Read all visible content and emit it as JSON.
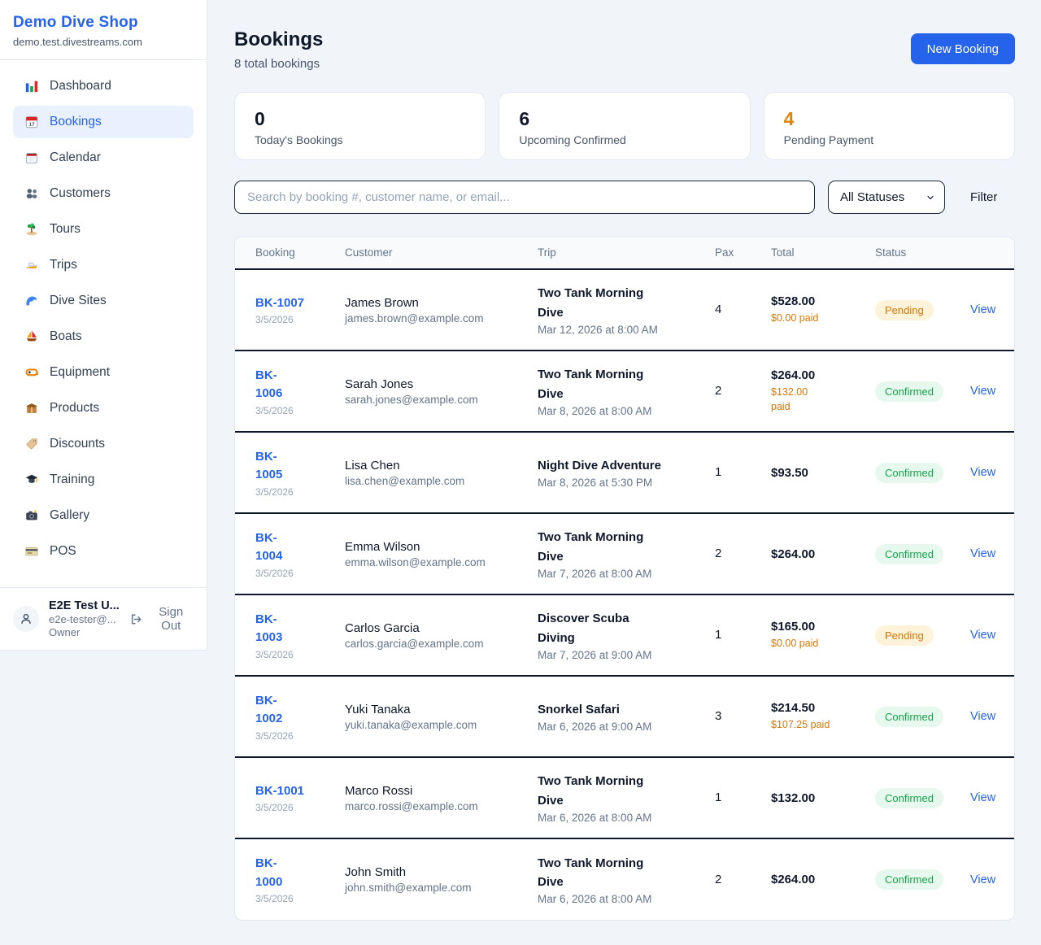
{
  "colors": {
    "accent_blue": "#2563eb",
    "accent_orange": "#d97706",
    "confirmed_green": "#16a34a",
    "pending_badge_bg": "#fdf3da",
    "confirmed_badge_bg": "#e7f8ee"
  },
  "sidebar": {
    "shop_name": "Demo Dive Shop",
    "shop_domain": "demo.test.divestreams.com",
    "items": [
      {
        "label": "Dashboard",
        "icon": "bar-chart-icon",
        "active": false
      },
      {
        "label": "Bookings",
        "icon": "calendar-icon",
        "active": true
      },
      {
        "label": "Calendar",
        "icon": "spiral-calendar-icon",
        "active": false
      },
      {
        "label": "Customers",
        "icon": "users-icon",
        "active": false
      },
      {
        "label": "Tours",
        "icon": "island-icon",
        "active": false
      },
      {
        "label": "Trips",
        "icon": "speedboat-icon",
        "active": false
      },
      {
        "label": "Dive Sites",
        "icon": "wave-icon",
        "active": false
      },
      {
        "label": "Boats",
        "icon": "sailboat-icon",
        "active": false
      },
      {
        "label": "Equipment",
        "icon": "diving-mask-icon",
        "active": false
      },
      {
        "label": "Products",
        "icon": "package-icon",
        "active": false
      },
      {
        "label": "Discounts",
        "icon": "label-icon",
        "active": false
      },
      {
        "label": "Training",
        "icon": "graduation-cap-icon",
        "active": false
      },
      {
        "label": "Gallery",
        "icon": "camera-icon",
        "active": false
      },
      {
        "label": "POS",
        "icon": "credit-card-icon",
        "active": false
      }
    ],
    "user": {
      "name": "E2E Test U...",
      "email": "e2e-tester@...",
      "role": "Owner",
      "sign_out_label": "Sign Out"
    }
  },
  "header": {
    "title": "Bookings",
    "subtitle": "8 total bookings",
    "new_booking_label": "New Booking"
  },
  "stats": [
    {
      "value": "0",
      "label": "Today's Bookings",
      "orange": false
    },
    {
      "value": "6",
      "label": "Upcoming Confirmed",
      "orange": false
    },
    {
      "value": "4",
      "label": "Pending Payment",
      "orange": true
    }
  ],
  "filters": {
    "search_placeholder": "Search by booking #, customer name, or email...",
    "status_select_value": "All Statuses",
    "filter_label": "Filter"
  },
  "table": {
    "columns": [
      "Booking",
      "Customer",
      "Trip",
      "Pax",
      "Total",
      "Status",
      ""
    ],
    "view_label": "View",
    "rows": [
      {
        "booking": "BK-1007",
        "date": "3/5/2026",
        "customer": "James Brown",
        "email": "james.brown@example.com",
        "trip": "Two Tank Morning\nDive",
        "trip_date": "Mar 12, 2026 at 8:00 AM",
        "pax": "4",
        "total": "$528.00",
        "paid": "$0.00 paid",
        "status": "Pending"
      },
      {
        "booking": "BK-\n1006",
        "date": "3/5/2026",
        "customer": "Sarah Jones",
        "email": "sarah.jones@example.com",
        "trip": "Two Tank Morning\nDive",
        "trip_date": "Mar 8, 2026 at 8:00 AM",
        "pax": "2",
        "total": "$264.00",
        "paid": "$132.00\npaid",
        "status": "Confirmed"
      },
      {
        "booking": "BK-\n1005",
        "date": "3/5/2026",
        "customer": "Lisa Chen",
        "email": "lisa.chen@example.com",
        "trip": "Night Dive Adventure",
        "trip_date": "Mar 8, 2026 at 5:30 PM",
        "pax": "1",
        "total": "$93.50",
        "paid": "",
        "status": "Confirmed"
      },
      {
        "booking": "BK-\n1004",
        "date": "3/5/2026",
        "customer": "Emma Wilson",
        "email": "emma.wilson@example.com",
        "trip": "Two Tank Morning\nDive",
        "trip_date": "Mar 7, 2026 at 8:00 AM",
        "pax": "2",
        "total": "$264.00",
        "paid": "",
        "status": "Confirmed"
      },
      {
        "booking": "BK-\n1003",
        "date": "3/5/2026",
        "customer": "Carlos Garcia",
        "email": "carlos.garcia@example.com",
        "trip": "Discover Scuba\nDiving",
        "trip_date": "Mar 7, 2026 at 9:00 AM",
        "pax": "1",
        "total": "$165.00",
        "paid": "$0.00 paid",
        "status": "Pending"
      },
      {
        "booking": "BK-\n1002",
        "date": "3/5/2026",
        "customer": "Yuki Tanaka",
        "email": "yuki.tanaka@example.com",
        "trip": "Snorkel Safari",
        "trip_date": "Mar 6, 2026 at 9:00 AM",
        "pax": "3",
        "total": "$214.50",
        "paid": "$107.25 paid",
        "status": "Confirmed"
      },
      {
        "booking": "BK-1001",
        "date": "3/5/2026",
        "customer": "Marco Rossi",
        "email": "marco.rossi@example.com",
        "trip": "Two Tank Morning\nDive",
        "trip_date": "Mar 6, 2026 at 8:00 AM",
        "pax": "1",
        "total": "$132.00",
        "paid": "",
        "status": "Confirmed"
      },
      {
        "booking": "BK-\n1000",
        "date": "3/5/2026",
        "customer": "John Smith",
        "email": "john.smith@example.com",
        "trip": "Two Tank Morning\nDive",
        "trip_date": "Mar 6, 2026 at 8:00 AM",
        "pax": "2",
        "total": "$264.00",
        "paid": "",
        "status": "Confirmed"
      }
    ]
  }
}
